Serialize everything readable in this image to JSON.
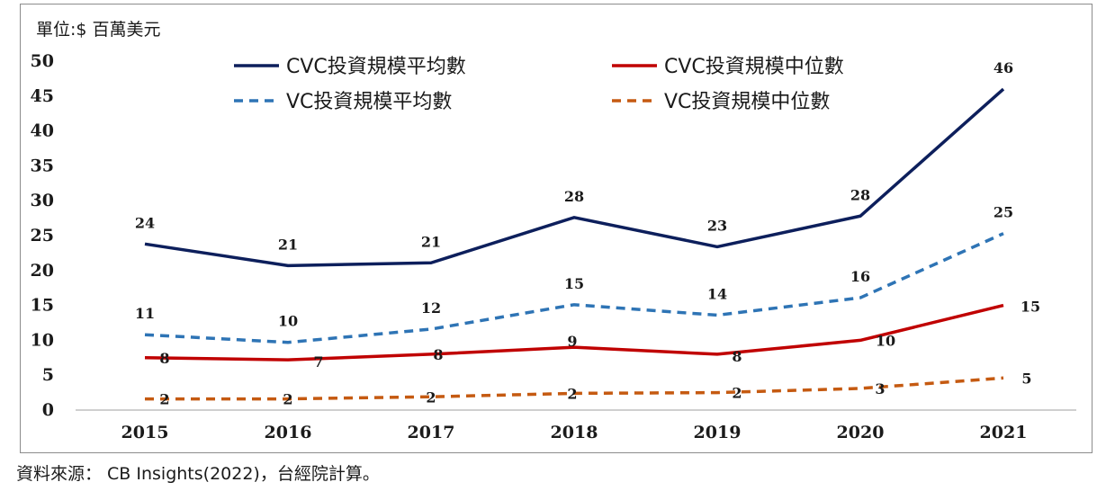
{
  "unit_label": "單位:$ 百萬美元",
  "source_note": "資料來源： CB Insights(2022)，台經院計算。",
  "chart_data": {
    "type": "line",
    "categories": [
      "2015",
      "2016",
      "2017",
      "2018",
      "2019",
      "2020",
      "2021"
    ],
    "ylim": [
      0,
      50
    ],
    "yticks": [
      0,
      5,
      10,
      15,
      20,
      25,
      30,
      35,
      40,
      45,
      50
    ],
    "grid": false,
    "legend_position": "top",
    "series": [
      {
        "name": "CVC投資規模平均數",
        "values": [
          23.8,
          20.7,
          21.1,
          27.6,
          23.4,
          27.8,
          46.0
        ],
        "labels": [
          "24",
          "21",
          "21",
          "28",
          "23",
          "28",
          "46"
        ],
        "color": "#0d1f5c",
        "dashed": false
      },
      {
        "name": "CVC投資規模中位數",
        "values": [
          7.5,
          7.2,
          8.0,
          9.0,
          8.0,
          10.0,
          15.0
        ],
        "labels": [
          "8",
          "7",
          "8",
          "9",
          "8",
          "10",
          "15"
        ],
        "color": "#c00000",
        "dashed": false
      },
      {
        "name": "VC投資規模平均數",
        "values": [
          10.8,
          9.7,
          11.6,
          15.1,
          13.6,
          16.1,
          25.3
        ],
        "labels": [
          "11",
          "10",
          "12",
          "15",
          "14",
          "16",
          "25"
        ],
        "color": "#2e74b5",
        "dashed": true
      },
      {
        "name": "VC投資規模中位數",
        "values": [
          1.6,
          1.6,
          1.9,
          2.4,
          2.5,
          3.1,
          4.6
        ],
        "labels": [
          "2",
          "2",
          "2",
          "2",
          "2",
          "3",
          "5"
        ],
        "color": "#c55a11",
        "dashed": true
      }
    ]
  }
}
